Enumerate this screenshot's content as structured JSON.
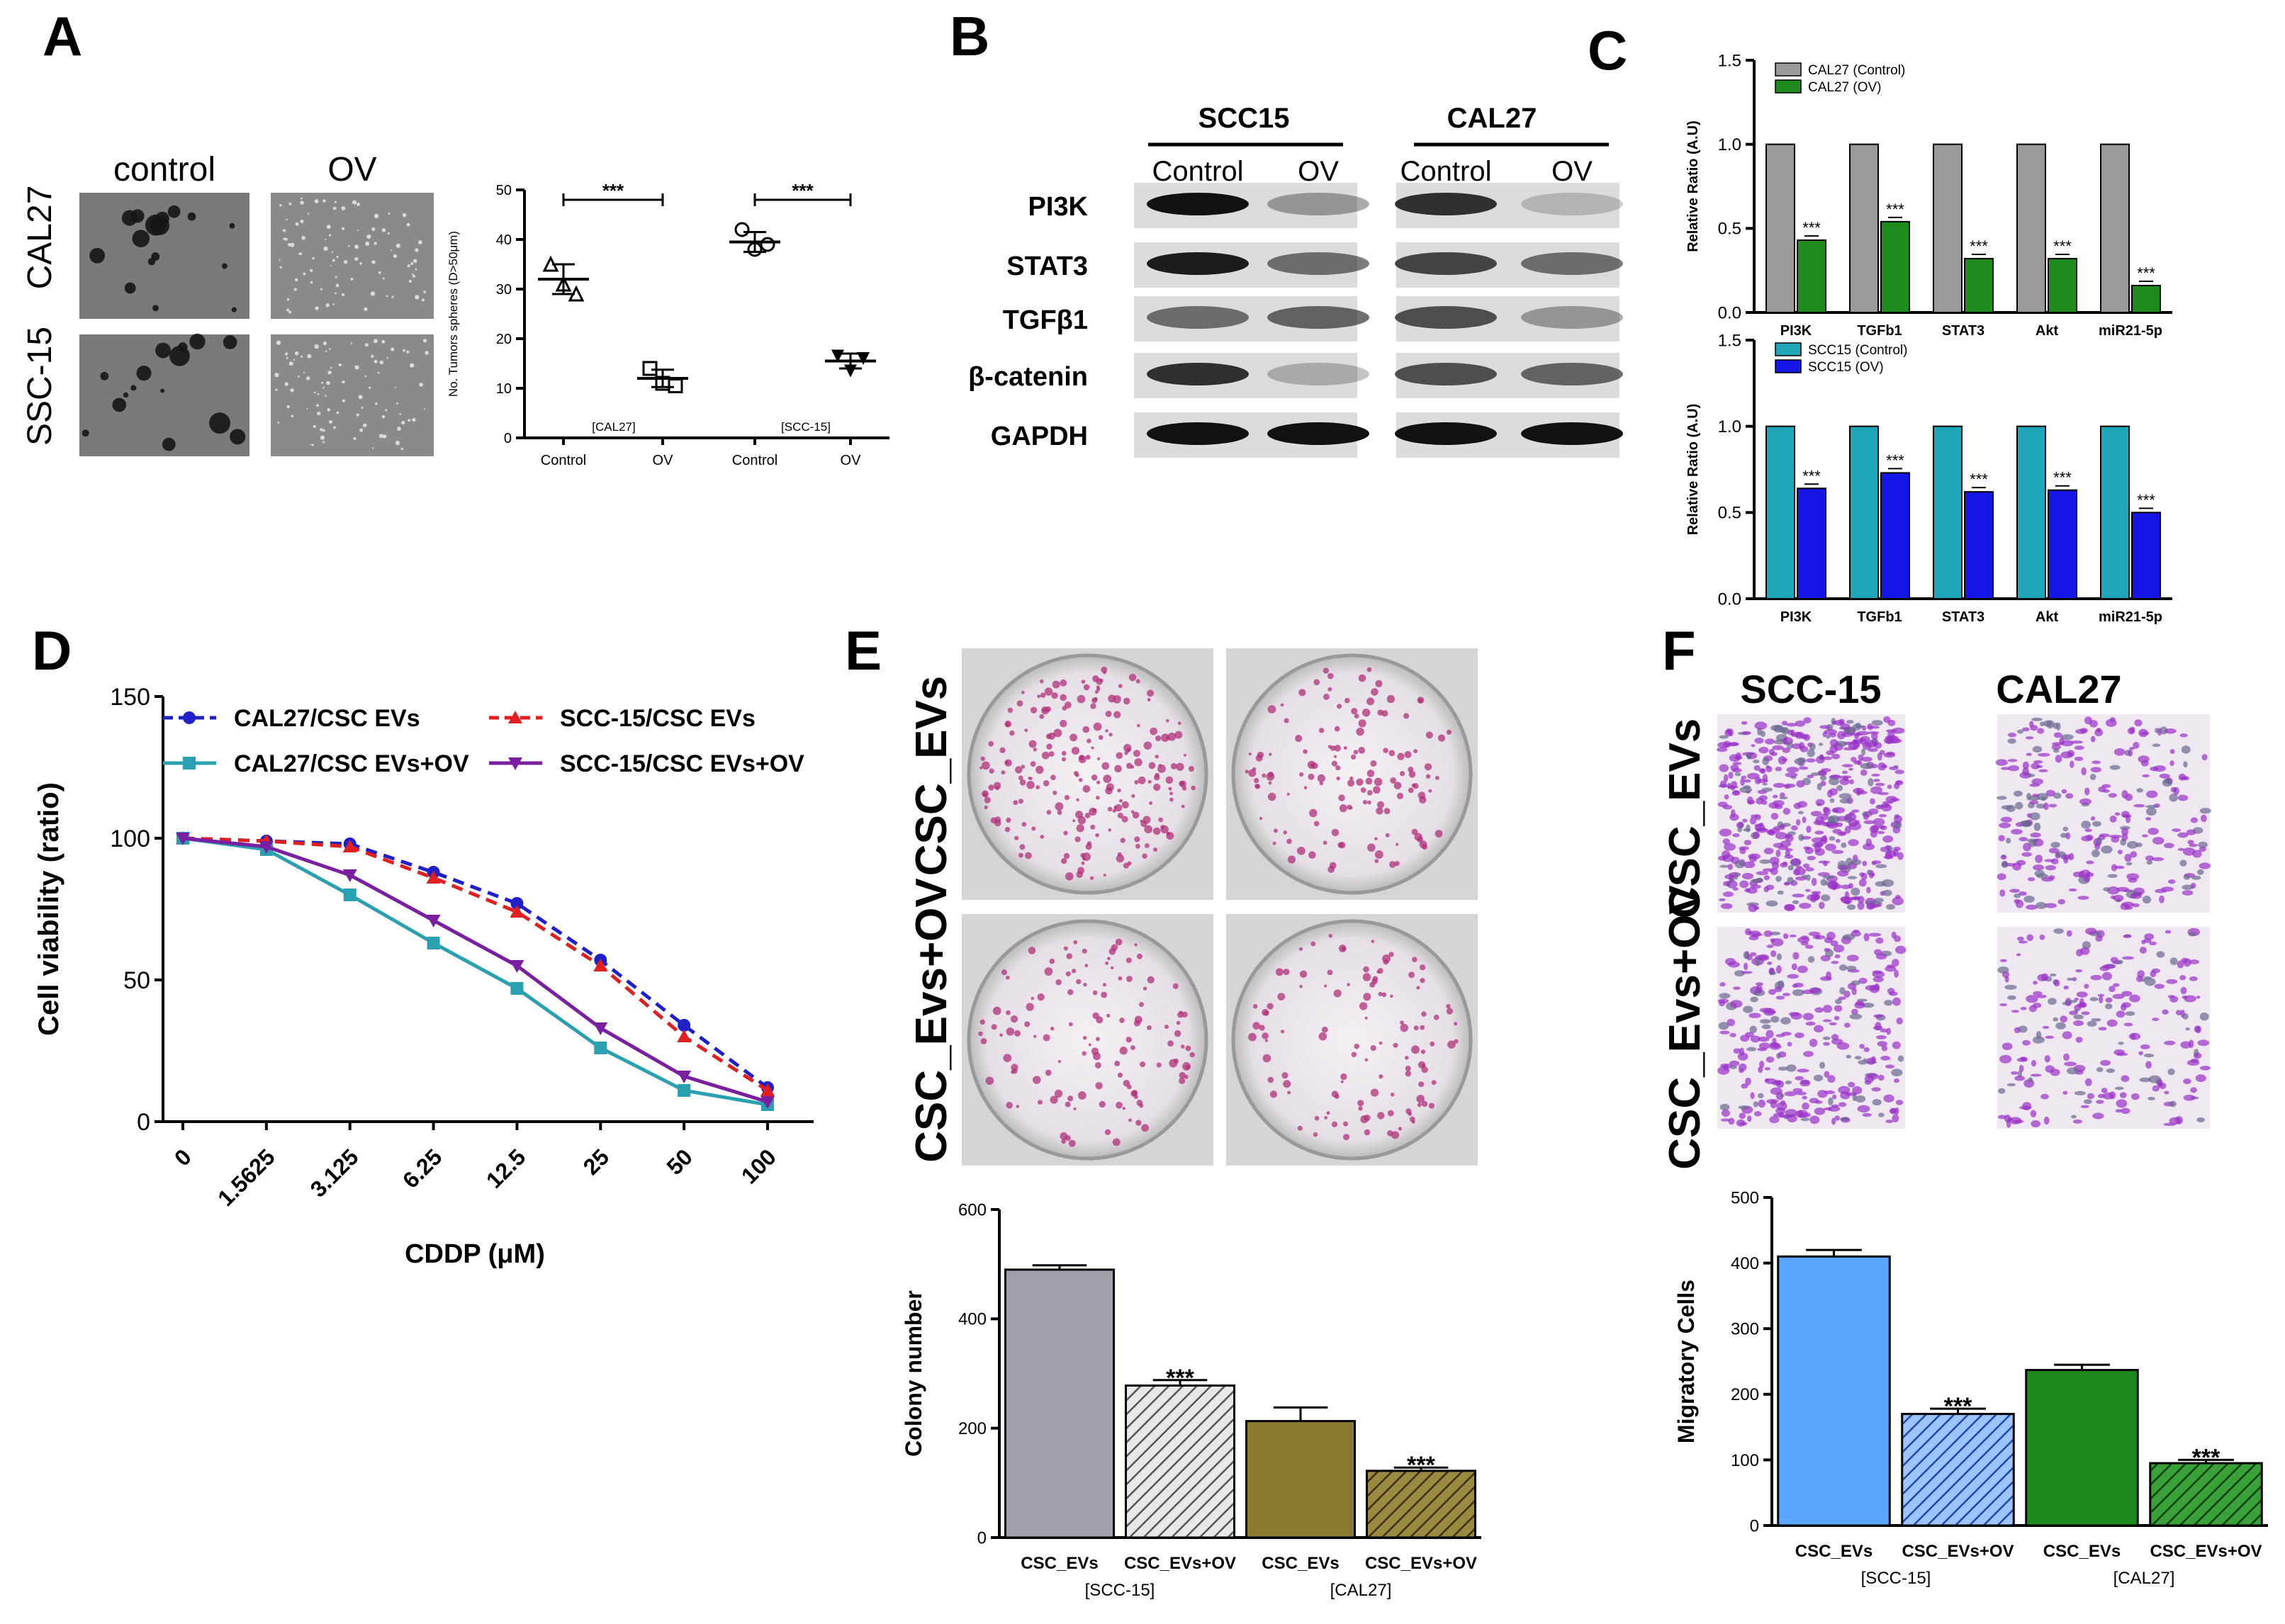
{
  "figure": {
    "panel_labels": [
      "A",
      "B",
      "C",
      "D",
      "E",
      "F"
    ],
    "colors": {
      "cal27_control": "#9a9a9a",
      "cal27_ov": "#1f8b1f",
      "scc15_control": "#1fa6b8",
      "scc15_ov": "#1515e6",
      "d_cal27": "#2020c8",
      "d_scc15": "#e02020",
      "d_cal27_ov": "#2aa0b0",
      "d_scc15_ov": "#7a1fa0",
      "e_scc15_evs": "#a0a0a8",
      "e_scc15_evs_ov": "#a8a8a8",
      "e_cal27_evs": "#8a7a30",
      "e_cal27_evs_ov": "#7a6a28",
      "f_scc15_evs": "#5aa6ff",
      "f_scc15_evs_ov": "#3a78d8",
      "f_cal27_evs": "#1c8a1c",
      "f_cal27_evs_ov": "#1c8a1c"
    }
  },
  "panel_a": {
    "col_headers": [
      "control",
      "OV"
    ],
    "row_labels": [
      "CAL27",
      "SSC-15"
    ]
  },
  "panel_b": {
    "groups": [
      "SCC15",
      "CAL27"
    ],
    "subheaders": [
      "Control",
      "OV",
      "Control",
      "OV"
    ],
    "rows": [
      "PI3K",
      "STAT3",
      "TGFβ1",
      "β-catenin",
      "GAPDH"
    ]
  },
  "panel_e_images": {
    "row_labels": [
      "CSC_EVs",
      "CSC_Evs+OV"
    ]
  },
  "panel_f_images": {
    "col_headers": [
      "SCC-15",
      "CAL27"
    ],
    "row_labels": [
      "CSC_EVs",
      "CSC_Evs+OV"
    ]
  },
  "chart_data": [
    {
      "id": "A",
      "type": "scatter",
      "title": "",
      "xlabel": "",
      "ylabel": "No. Tumors spheres (D>50μm)",
      "ylim": [
        0,
        50
      ],
      "yticks": [
        "0",
        "10",
        "20",
        "30",
        "40",
        "50"
      ],
      "categories": [
        "Control",
        "OV",
        "Control",
        "OV"
      ],
      "group_labels": [
        "[CAL27]",
        "[SCC-15]"
      ],
      "series": [
        {
          "name": "CAL27 Control",
          "marker": "triangle",
          "points": [
            35,
            31,
            29
          ],
          "mean": 32
        },
        {
          "name": "CAL27 OV",
          "marker": "square",
          "points": [
            14,
            11,
            10.5
          ],
          "mean": 12
        },
        {
          "name": "SCC-15 Control",
          "marker": "circle",
          "points": [
            42,
            38,
            39
          ],
          "mean": 39.5
        },
        {
          "name": "SCC-15 OV",
          "marker": "triangle-down",
          "points": [
            16.5,
            13.5,
            16
          ],
          "mean": 15.5
        }
      ],
      "significance": [
        "***",
        "***"
      ]
    },
    {
      "id": "C-top",
      "type": "bar",
      "ylabel": "Relative Ratio (A.U)",
      "ylim": [
        0,
        1.5
      ],
      "yticks": [
        "0.0",
        "0.5",
        "1.0",
        "1.5"
      ],
      "categories": [
        "PI3K",
        "TGFb1",
        "STAT3",
        "Akt",
        "miR21-5p"
      ],
      "series": [
        {
          "name": "CAL27 (Control)",
          "values": [
            1,
            1,
            1,
            1,
            1
          ]
        },
        {
          "name": "CAL27 (OV)",
          "values": [
            0.43,
            0.54,
            0.32,
            0.32,
            0.16
          ]
        }
      ],
      "significance": [
        "***",
        "***",
        "***",
        "***",
        "***"
      ]
    },
    {
      "id": "C-bottom",
      "type": "bar",
      "ylabel": "Relative Ratio (A.U)",
      "ylim": [
        0,
        1.5
      ],
      "yticks": [
        "0.0",
        "0.5",
        "1.0",
        "1.5"
      ],
      "categories": [
        "PI3K",
        "TGFb1",
        "STAT3",
        "Akt",
        "miR21-5p"
      ],
      "series": [
        {
          "name": "SCC15 (Control)",
          "values": [
            1,
            1,
            1,
            1,
            1
          ]
        },
        {
          "name": "SCC15 (OV)",
          "values": [
            0.64,
            0.73,
            0.62,
            0.63,
            0.5
          ]
        }
      ],
      "significance": [
        "***",
        "***",
        "***",
        "***",
        "***"
      ]
    },
    {
      "id": "D",
      "type": "line",
      "xlabel": "CDDP (μM)",
      "ylabel": "Cell viability (ratio)",
      "ylim": [
        0,
        150
      ],
      "yticks": [
        "0",
        "50",
        "100",
        "150"
      ],
      "categories": [
        "0",
        "1.5625",
        "3.125",
        "6.25",
        "12.5",
        "25",
        "50",
        "100"
      ],
      "series": [
        {
          "name": "CAL27/CSC EVs",
          "values": [
            100,
            99,
            98,
            88,
            77,
            57,
            34,
            12
          ]
        },
        {
          "name": "SCC-15/CSC EVs",
          "values": [
            100,
            99,
            97,
            86,
            74,
            55,
            30,
            11
          ]
        },
        {
          "name": "CAL27/CSC EVs+OV",
          "values": [
            100,
            96,
            80,
            63,
            47,
            26,
            11,
            6
          ]
        },
        {
          "name": "SCC-15/CSC EVs+OV",
          "values": [
            100,
            97,
            87,
            71,
            55,
            33,
            16,
            7
          ]
        }
      ]
    },
    {
      "id": "E",
      "type": "bar",
      "ylabel": "Colony number",
      "ylim": [
        0,
        600
      ],
      "yticks": [
        "0",
        "200",
        "400",
        "600"
      ],
      "categories": [
        "CSC_EVs",
        "CSC_EVs+OV",
        "CSC_EVs",
        "CSC_EVs+OV"
      ],
      "group_labels": [
        "[SCC-15]",
        "[CAL27]"
      ],
      "values": [
        490,
        278,
        213,
        122
      ],
      "errors": [
        8,
        10,
        25,
        6
      ],
      "significance": [
        "",
        "***",
        "",
        "***"
      ]
    },
    {
      "id": "F",
      "type": "bar",
      "ylabel": "Migratory Cells",
      "ylim": [
        0,
        500
      ],
      "yticks": [
        "0",
        "100",
        "200",
        "300",
        "400",
        "500"
      ],
      "categories": [
        "CSC_EVs",
        "CSC_EVs+OV",
        "CSC_EVs",
        "CSC_EVs+OV"
      ],
      "group_labels": [
        "[SCC-15]",
        "[CAL27]"
      ],
      "values": [
        410,
        170,
        237,
        95
      ],
      "errors": [
        10,
        8,
        8,
        5
      ],
      "significance": [
        "",
        "***",
        "",
        "***"
      ]
    }
  ]
}
